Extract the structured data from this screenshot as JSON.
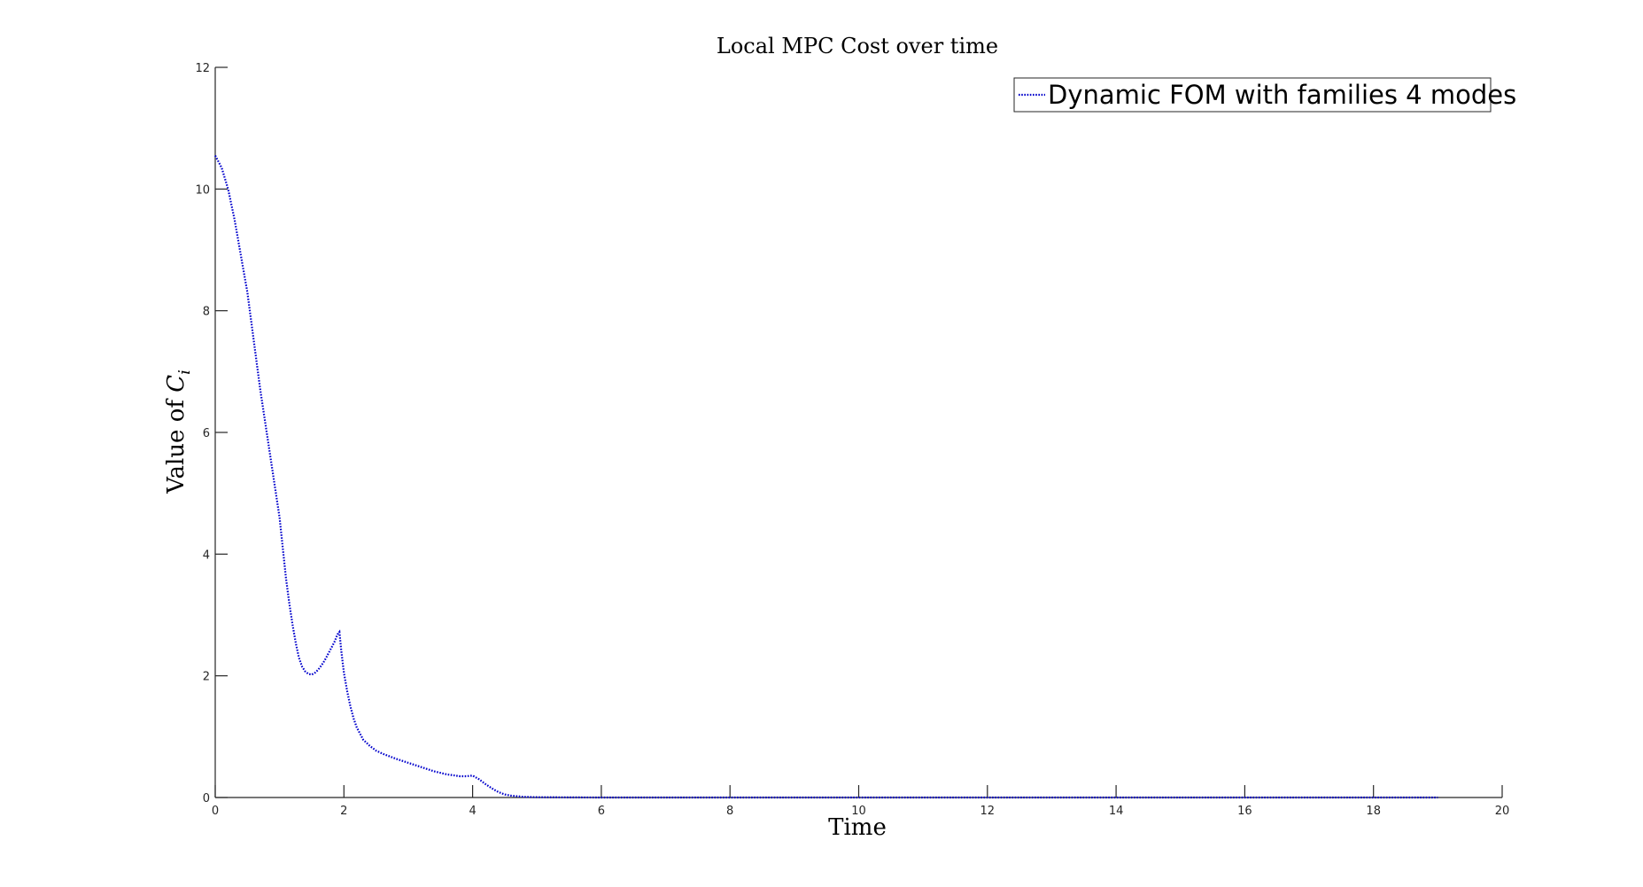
{
  "chart_data": {
    "type": "line",
    "title": "Local MPC Cost over time",
    "xlabel": "Time",
    "ylabel_text": "Value of ",
    "ylabel_symbol": "C",
    "ylabel_subscript": "i",
    "xlim": [
      0,
      20
    ],
    "ylim": [
      0,
      12
    ],
    "xticks": [
      0,
      2,
      4,
      6,
      8,
      10,
      12,
      14,
      16,
      18,
      20
    ],
    "yticks": [
      0,
      2,
      4,
      6,
      8,
      10,
      12
    ],
    "grid": false,
    "legend_position": "top-right",
    "series": [
      {
        "name": "Dynamic FOM with families 4 modes",
        "color": "#0000cc",
        "line_style": "dotted",
        "x": [
          0,
          0.1,
          0.2,
          0.3,
          0.4,
          0.5,
          0.6,
          0.7,
          0.8,
          0.9,
          1.0,
          1.05,
          1.1,
          1.15,
          1.2,
          1.25,
          1.3,
          1.35,
          1.4,
          1.45,
          1.5,
          1.55,
          1.6,
          1.65,
          1.7,
          1.75,
          1.8,
          1.85,
          1.9,
          1.93,
          1.96,
          2.0,
          2.05,
          2.1,
          2.15,
          2.2,
          2.3,
          2.4,
          2.5,
          2.6,
          2.7,
          2.8,
          3.0,
          3.2,
          3.4,
          3.6,
          3.8,
          3.9,
          4.0,
          4.1,
          4.2,
          4.3,
          4.4,
          4.5,
          4.6,
          4.7,
          4.8,
          5.0,
          5.5,
          6,
          7,
          8,
          9,
          10,
          11,
          12,
          13,
          14,
          15,
          16,
          17,
          18,
          19
        ],
        "y": [
          10.55,
          10.35,
          10.0,
          9.5,
          8.9,
          8.3,
          7.5,
          6.7,
          6.0,
          5.3,
          4.6,
          4.1,
          3.6,
          3.2,
          2.85,
          2.55,
          2.3,
          2.15,
          2.07,
          2.03,
          2.02,
          2.05,
          2.1,
          2.17,
          2.25,
          2.35,
          2.45,
          2.55,
          2.68,
          2.72,
          2.4,
          2.05,
          1.75,
          1.5,
          1.3,
          1.15,
          0.95,
          0.85,
          0.77,
          0.72,
          0.68,
          0.64,
          0.57,
          0.5,
          0.43,
          0.38,
          0.35,
          0.35,
          0.36,
          0.3,
          0.22,
          0.15,
          0.09,
          0.05,
          0.03,
          0.02,
          0.01,
          0.005,
          0.002,
          0.0,
          0.0,
          0.0,
          0.0,
          0.0,
          0.0,
          0.0,
          0.0,
          0.0,
          0.0,
          0.0,
          0.0,
          0.0,
          0.0
        ]
      }
    ]
  }
}
